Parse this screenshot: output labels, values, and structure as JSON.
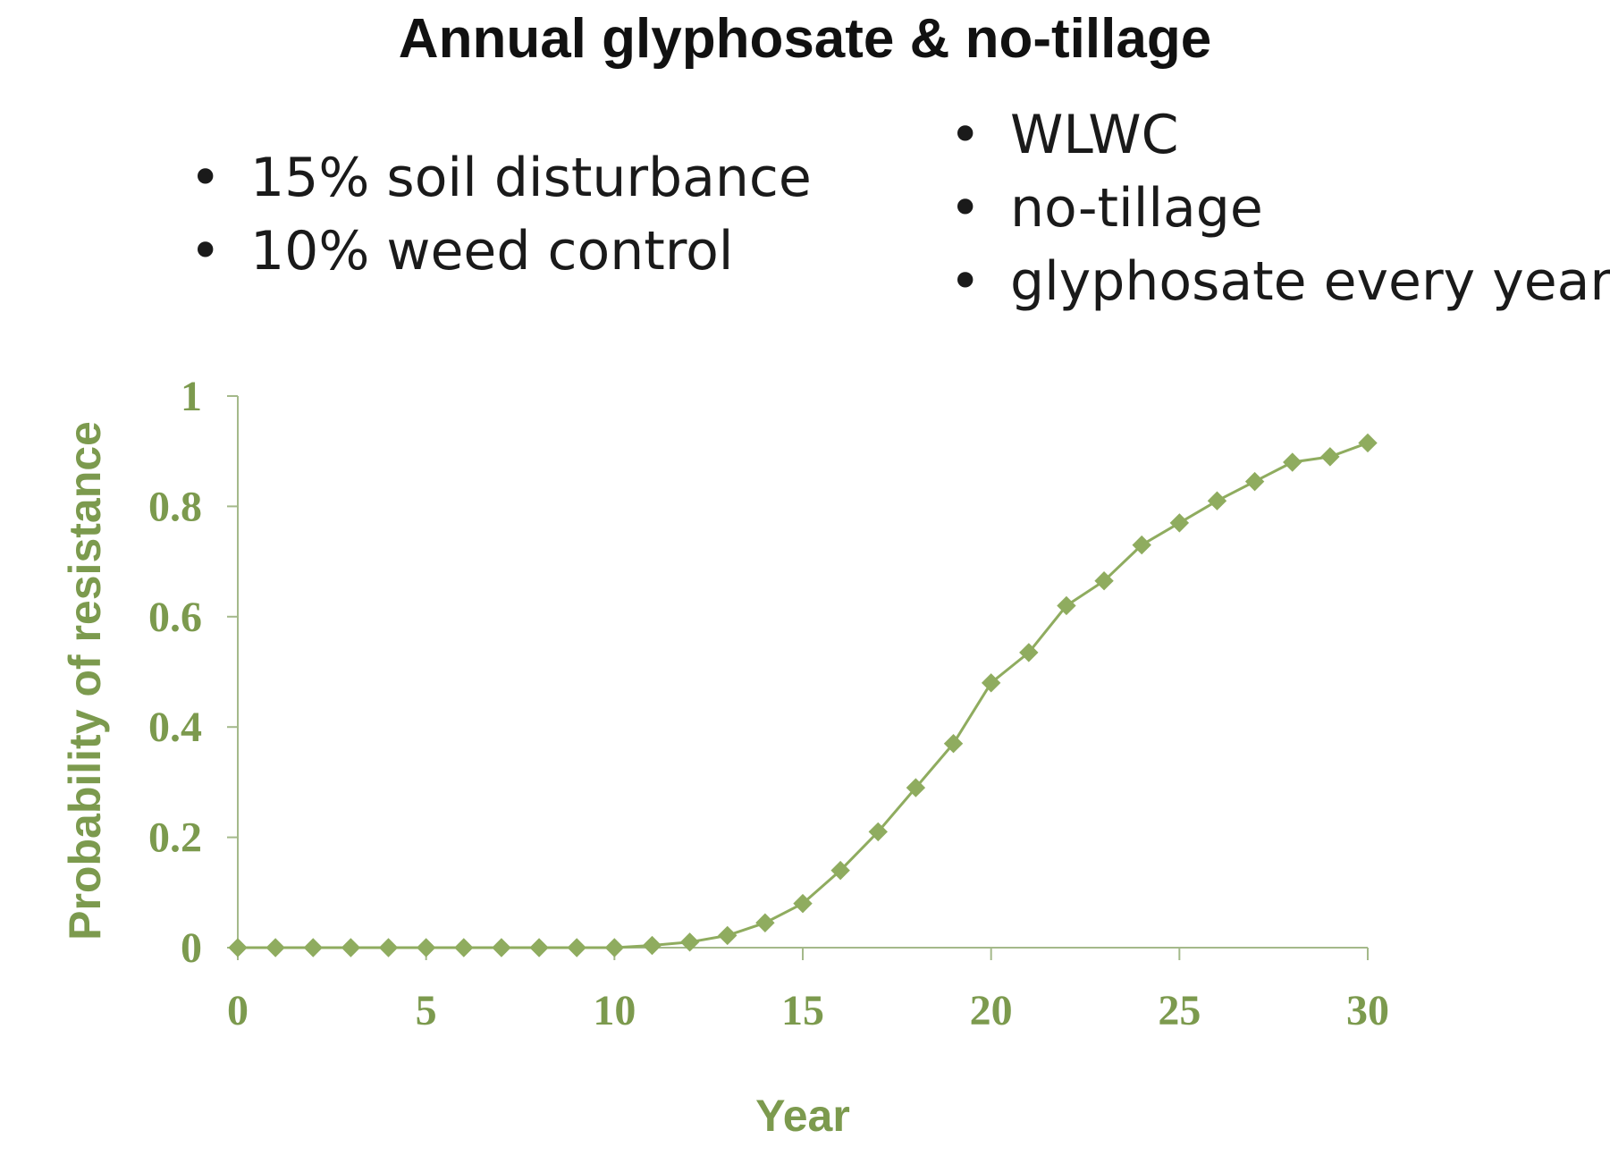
{
  "title": "Annual glyphosate & no-tillage",
  "bullets_left": [
    "15% soil disturbance",
    "10% weed control"
  ],
  "bullets_right": [
    "WLWC",
    "no-tillage",
    "glyphosate every year"
  ],
  "colors": {
    "series": "#8fac5f",
    "axis": "#a4b98a",
    "labels": "#7c9a4e"
  },
  "chart_data": {
    "type": "line",
    "title": "Annual glyphosate & no-tillage",
    "xlabel": "Year",
    "ylabel": "Probability of resistance",
    "xlim": [
      0,
      30
    ],
    "ylim": [
      0,
      1
    ],
    "xticks": [
      0,
      5,
      10,
      15,
      20,
      25,
      30
    ],
    "yticks": [
      0,
      0.2,
      0.4,
      0.6,
      0.8,
      1
    ],
    "xtick_labels": [
      "0",
      "5",
      "10",
      "15",
      "20",
      "25",
      "30"
    ],
    "ytick_labels": [
      "0",
      "0.2",
      "0.4",
      "0.6",
      "0.8",
      "1"
    ],
    "grid": false,
    "marker": "diamond",
    "series": [
      {
        "x": [
          0,
          1,
          2,
          3,
          4,
          5,
          6,
          7,
          8,
          9,
          10,
          11,
          12,
          13,
          14,
          15,
          16,
          17,
          18,
          19,
          20,
          21,
          22,
          23,
          24,
          25,
          26,
          27,
          28,
          29,
          30
        ],
        "values": [
          0,
          0,
          0,
          0,
          0,
          0,
          0,
          0,
          0,
          0,
          0,
          0.004,
          0.01,
          0.022,
          0.045,
          0.08,
          0.14,
          0.21,
          0.29,
          0.37,
          0.48,
          0.535,
          0.62,
          0.665,
          0.73,
          0.77,
          0.81,
          0.845,
          0.88,
          0.89,
          0.915
        ]
      }
    ]
  }
}
